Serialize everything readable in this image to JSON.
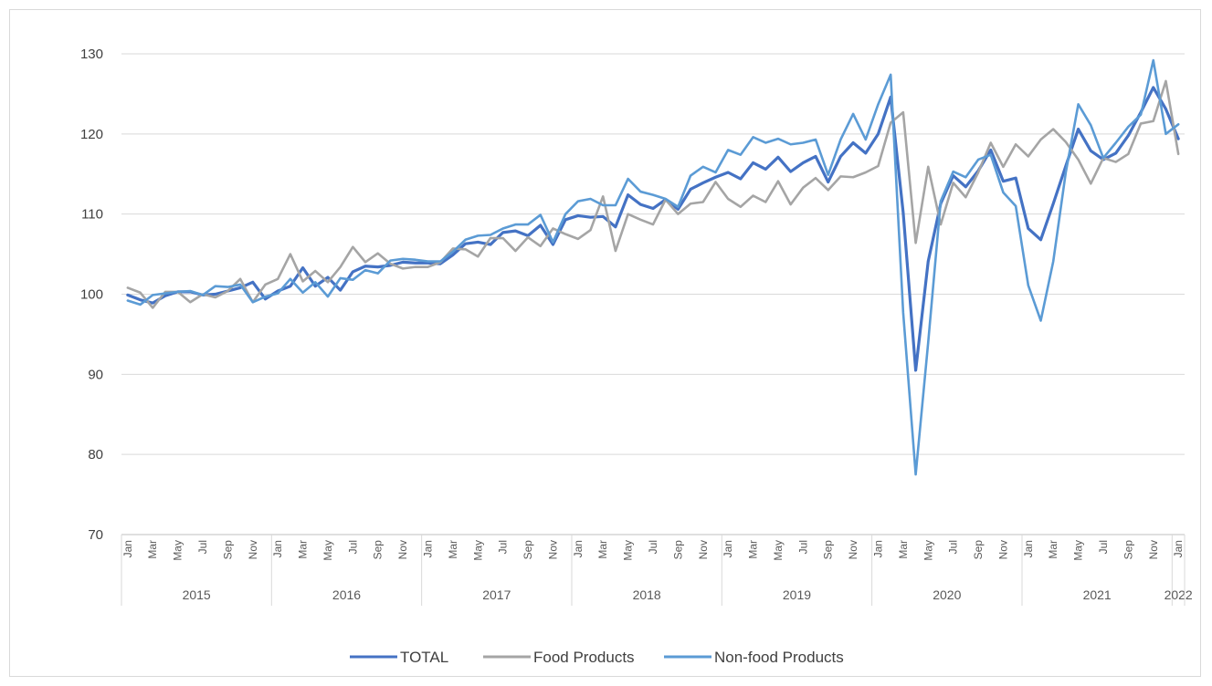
{
  "chart_data": {
    "type": "line",
    "title": "",
    "xlabel": "",
    "ylabel": "",
    "ylim": [
      70,
      130
    ],
    "yticks": [
      70,
      80,
      90,
      100,
      110,
      120,
      130
    ],
    "grid": true,
    "legend_position": "bottom",
    "month_labels": [
      "Jan",
      "Mar",
      "May",
      "Jul",
      "Sep",
      "Nov"
    ],
    "years": [
      "2015",
      "2016",
      "2017",
      "2018",
      "2019",
      "2020",
      "2021",
      "2022"
    ],
    "series": [
      {
        "name": "TOTAL",
        "color": "#4472c4",
        "values": [
          99.9,
          99.3,
          98.9,
          99.8,
          100.3,
          100.3,
          99.9,
          100.0,
          100.4,
          100.8,
          101.5,
          99.4,
          100.4,
          101.0,
          103.3,
          101.0,
          102.1,
          100.5,
          102.8,
          103.5,
          103.4,
          103.6,
          104.0,
          103.9,
          103.9,
          103.8,
          104.9,
          106.3,
          106.5,
          106.2,
          107.7,
          107.9,
          107.3,
          108.6,
          106.2,
          109.3,
          109.8,
          109.6,
          109.7,
          108.4,
          112.4,
          111.2,
          110.7,
          111.8,
          110.6,
          113.1,
          113.9,
          114.6,
          115.2,
          114.4,
          116.4,
          115.6,
          117.1,
          115.3,
          116.4,
          117.2,
          114.0,
          117.2,
          118.9,
          117.6,
          120.0,
          124.6,
          110.2,
          90.5,
          104.1,
          111.3,
          114.8,
          113.4,
          115.4,
          118.0,
          114.1,
          114.5,
          108.2,
          106.8,
          111.3,
          116.0,
          120.6,
          117.9,
          116.8,
          117.6,
          119.8,
          122.7,
          125.8,
          123.1,
          119.4
        ]
      },
      {
        "name": "Food Products",
        "color": "#a5a5a5",
        "values": [
          100.8,
          100.2,
          98.3,
          100.3,
          100.3,
          99.0,
          100.0,
          99.6,
          100.4,
          101.9,
          99.0,
          101.2,
          101.9,
          105.0,
          101.6,
          102.9,
          101.5,
          103.4,
          105.9,
          104.0,
          105.1,
          103.8,
          103.2,
          103.4,
          103.4,
          104.0,
          105.7,
          105.6,
          104.7,
          107.0,
          107.0,
          105.4,
          107.1,
          106.0,
          108.2,
          107.5,
          106.9,
          108.0,
          112.2,
          105.4,
          110.0,
          109.3,
          108.7,
          111.8,
          110.0,
          111.3,
          111.5,
          114.0,
          111.9,
          110.9,
          112.3,
          111.5,
          114.1,
          111.2,
          113.3,
          114.5,
          113.0,
          114.7,
          114.6,
          115.2,
          116.0,
          121.4,
          122.7,
          106.4,
          115.9,
          108.7,
          113.9,
          112.1,
          115.2,
          118.9,
          115.9,
          118.7,
          117.2,
          119.3,
          120.6,
          119.0,
          116.8,
          113.8,
          117.0,
          116.5,
          117.5,
          121.3,
          121.6,
          126.6,
          117.5
        ]
      },
      {
        "name": "Non-food Products",
        "color": "#5b9bd5",
        "values": [
          99.2,
          98.7,
          99.9,
          100.1,
          100.3,
          100.4,
          99.9,
          101.0,
          100.9,
          101.2,
          99.0,
          99.7,
          100.1,
          101.9,
          100.2,
          101.5,
          99.7,
          102.0,
          101.8,
          103.0,
          102.6,
          104.2,
          104.4,
          104.3,
          104.1,
          104.1,
          105.3,
          106.8,
          107.3,
          107.4,
          108.2,
          108.7,
          108.7,
          109.9,
          106.5,
          110.0,
          111.6,
          111.9,
          111.1,
          111.1,
          114.4,
          112.8,
          112.4,
          111.9,
          110.9,
          114.8,
          115.9,
          115.2,
          118.0,
          117.4,
          119.6,
          118.9,
          119.4,
          118.7,
          118.9,
          119.3,
          114.9,
          119.3,
          122.5,
          119.3,
          123.7,
          127.4,
          97.7,
          77.5,
          94.0,
          111.6,
          115.3,
          114.6,
          116.8,
          117.4,
          112.7,
          111.0,
          101.1,
          96.7,
          104.1,
          115.2,
          123.7,
          121.1,
          117.0,
          118.9,
          120.9,
          122.4,
          129.2,
          120.0,
          121.2
        ]
      }
    ]
  }
}
